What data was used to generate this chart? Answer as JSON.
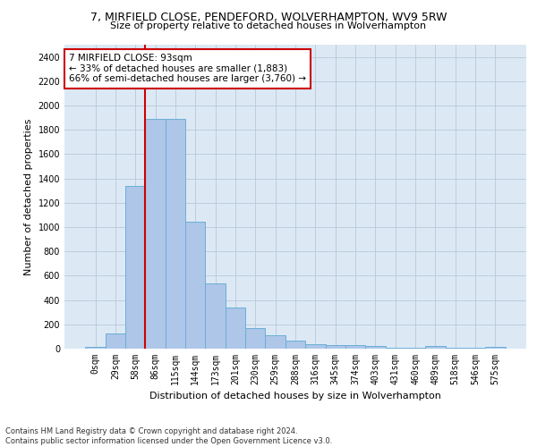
{
  "title1": "7, MIRFIELD CLOSE, PENDEFORD, WOLVERHAMPTON, WV9 5RW",
  "title2": "Size of property relative to detached houses in Wolverhampton",
  "xlabel": "Distribution of detached houses by size in Wolverhampton",
  "ylabel": "Number of detached properties",
  "footnote": "Contains HM Land Registry data © Crown copyright and database right 2024.\nContains public sector information licensed under the Open Government Licence v3.0.",
  "bar_labels": [
    "0sqm",
    "29sqm",
    "58sqm",
    "86sqm",
    "115sqm",
    "144sqm",
    "173sqm",
    "201sqm",
    "230sqm",
    "259sqm",
    "288sqm",
    "316sqm",
    "345sqm",
    "374sqm",
    "403sqm",
    "431sqm",
    "460sqm",
    "489sqm",
    "518sqm",
    "546sqm",
    "575sqm"
  ],
  "bar_values": [
    15,
    125,
    1340,
    1890,
    1890,
    1045,
    540,
    335,
    170,
    110,
    65,
    40,
    30,
    30,
    20,
    5,
    5,
    20,
    5,
    5,
    15
  ],
  "bar_color": "#aec6e8",
  "bar_edgecolor": "#6baed6",
  "background_color": "#dce9f5",
  "ylim": [
    0,
    2500
  ],
  "yticks": [
    0,
    200,
    400,
    600,
    800,
    1000,
    1200,
    1400,
    1600,
    1800,
    2000,
    2200,
    2400
  ],
  "vline_color": "#cc0000",
  "vline_index": 3,
  "annotation_text": "7 MIRFIELD CLOSE: 93sqm\n← 33% of detached houses are smaller (1,883)\n66% of semi-detached houses are larger (3,760) →",
  "annotation_box_facecolor": "#ffffff",
  "annotation_box_edgecolor": "#cc0000",
  "title1_fontsize": 9,
  "title2_fontsize": 8,
  "ylabel_fontsize": 8,
  "xlabel_fontsize": 8,
  "tick_fontsize": 7,
  "annotation_fontsize": 7.5,
  "footnote_fontsize": 6
}
